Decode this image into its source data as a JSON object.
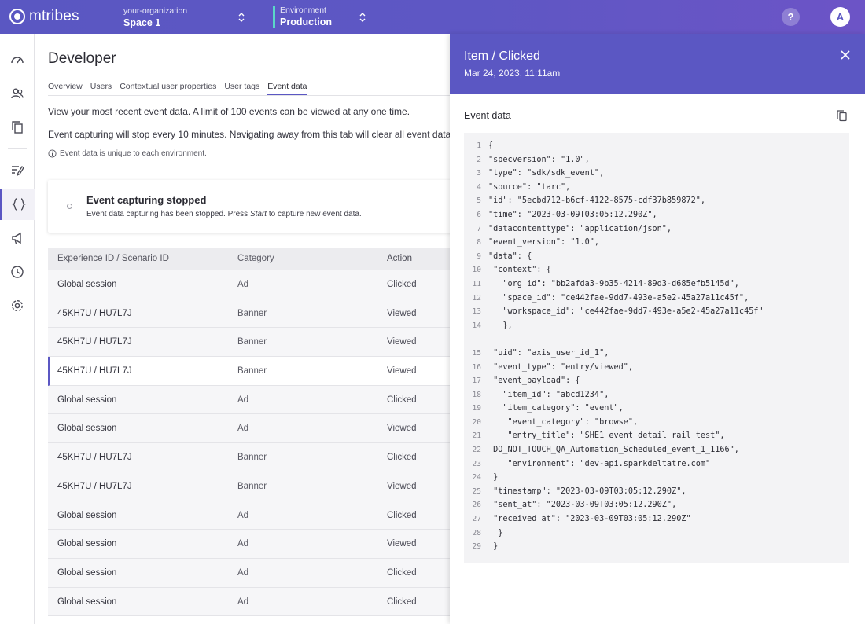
{
  "topbar": {
    "logo_text": "mtribes",
    "org_label": "your-organization",
    "org_value": "Space 1",
    "env_label": "Environment",
    "env_value": "Production",
    "help_label": "?",
    "avatar_initial": "A"
  },
  "main": {
    "title": "Developer",
    "tabs": [
      {
        "label": "Overview"
      },
      {
        "label": "Users"
      },
      {
        "label": "Contextual user properties"
      },
      {
        "label": "User tags"
      },
      {
        "label": "Event data",
        "active": true
      }
    ],
    "para1": "View your most recent event data. A limit of 100 events can be viewed at any one time.",
    "para2": "Event capturing will stop every 10 minutes. Navigating away from this tab will clear all event data.",
    "note": "Event data is unique to each environment.",
    "card": {
      "title": "Event capturing stopped",
      "sub_before": "Event data capturing has been stopped. Press ",
      "sub_em": "Start",
      "sub_after": " to capture new event data."
    },
    "table": {
      "headers": [
        "Experience ID / Scenario ID",
        "Category",
        "Action"
      ],
      "rows": [
        [
          "Global session",
          "Ad",
          "Clicked"
        ],
        [
          "45KH7U / HU7L7J",
          "Banner",
          "Viewed"
        ],
        [
          "45KH7U / HU7L7J",
          "Banner",
          "Viewed"
        ],
        [
          "45KH7U / HU7L7J",
          "Banner",
          "Viewed"
        ],
        [
          "Global session",
          "Ad",
          "Clicked"
        ],
        [
          "Global session",
          "Ad",
          "Viewed"
        ],
        [
          "45KH7U / HU7L7J",
          "Banner",
          "Clicked"
        ],
        [
          "45KH7U / HU7L7J",
          "Banner",
          "Viewed"
        ],
        [
          "Global session",
          "Ad",
          "Clicked"
        ],
        [
          "Global session",
          "Ad",
          "Viewed"
        ],
        [
          "Global session",
          "Ad",
          "Clicked"
        ],
        [
          "Global session",
          "Ad",
          "Clicked"
        ]
      ],
      "selected_row": 3
    }
  },
  "drawer": {
    "title": "Item / Clicked",
    "date": "Mar 24, 2023, 11:11am",
    "section_label": "Event data",
    "code_lines": [
      {
        "n": "1",
        "t": "{"
      },
      {
        "n": "2",
        "t": "\"specversion\": \"1.0\","
      },
      {
        "n": "3",
        "t": "\"type\": \"sdk/sdk_event\","
      },
      {
        "n": "4",
        "t": "\"source\": \"tarc\","
      },
      {
        "n": "5",
        "t": "\"id\": \"5ecbd712-b6cf-4122-8575-cdf37b859872\","
      },
      {
        "n": "6",
        "t": "\"time\": \"2023-03-09T03:05:12.290Z\","
      },
      {
        "n": "7",
        "t": "\"datacontenttype\": \"application/json\","
      },
      {
        "n": "8",
        "t": "\"event_version\": \"1.0\","
      },
      {
        "n": "9",
        "t": "\"data\": {"
      },
      {
        "n": "10",
        "t": " \"context\": {"
      },
      {
        "n": "11",
        "t": "   \"org_id\": \"bb2afda3-9b35-4214-89d3-d685efb5145d\","
      },
      {
        "n": "12",
        "t": "   \"space_id\": \"ce442fae-9dd7-493e-a5e2-45a27a11c45f\","
      },
      {
        "n": "13",
        "t": "   \"workspace_id\": \"ce442fae-9dd7-493e-a5e2-45a27a11c45f\""
      },
      {
        "n": "14",
        "t": "   },"
      },
      {
        "n": "15",
        "t": " \"uid\": \"axis_user_id_1\",",
        "gap": true
      },
      {
        "n": "16",
        "t": " \"event_type\": \"entry/viewed\","
      },
      {
        "n": "17",
        "t": " \"event_payload\": {"
      },
      {
        "n": "18",
        "t": "   \"item_id\": \"abcd1234\","
      },
      {
        "n": "19",
        "t": "   \"item_category\": \"event\","
      },
      {
        "n": "20",
        "t": "    \"event_category\": \"browse\","
      },
      {
        "n": "21",
        "t": "    \"entry_title\": \"SHE1 event detail rail test\","
      },
      {
        "n": "22",
        "t": " DO_NOT_TOUCH_QA_Automation_Scheduled_event_1_1166\","
      },
      {
        "n": "23",
        "t": "    \"environment\": \"dev-api.sparkdeltatre.com\""
      },
      {
        "n": "24",
        "t": " }"
      },
      {
        "n": "25",
        "t": " \"timestamp\": \"2023-03-09T03:05:12.290Z\","
      },
      {
        "n": "26",
        "t": " \"sent_at\": \"2023-03-09T03:05:12.290Z\","
      },
      {
        "n": "27",
        "t": " \"received_at\": \"2023-03-09T03:05:12.290Z\""
      },
      {
        "n": "28",
        "t": "  }"
      },
      {
        "n": "29",
        "t": " }"
      }
    ]
  }
}
